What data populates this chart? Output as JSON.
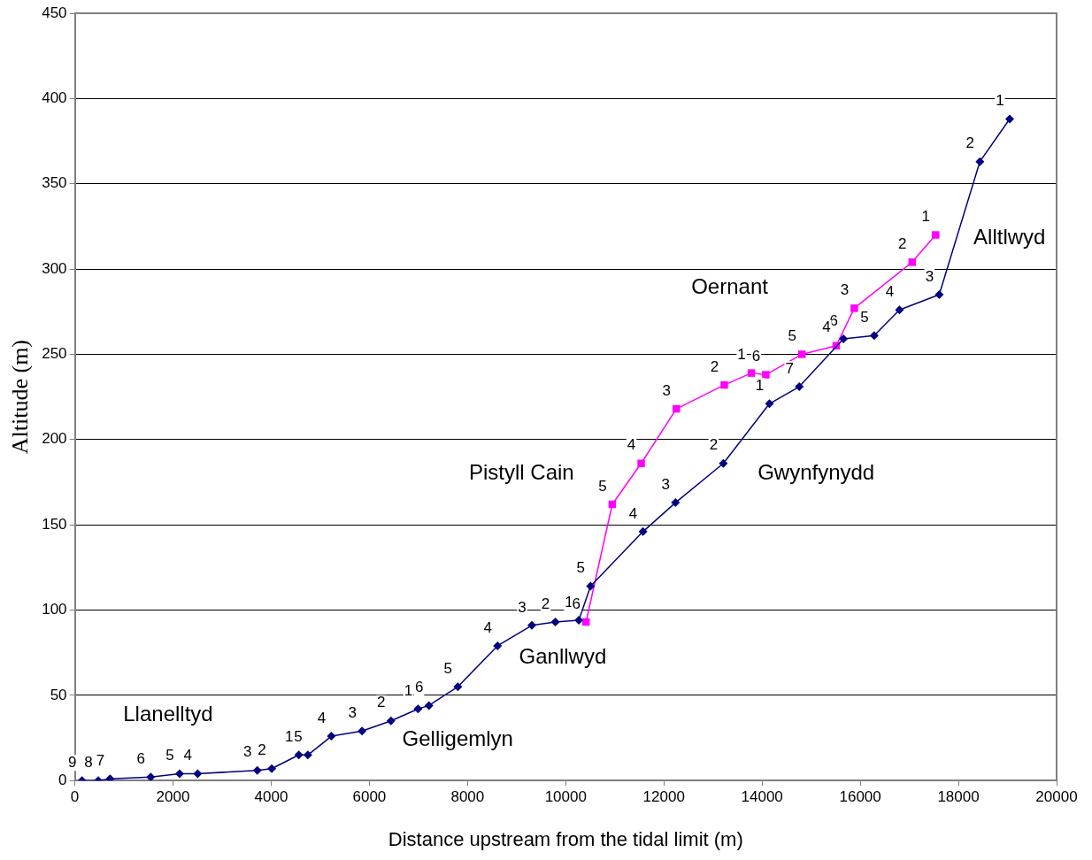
{
  "chart_data": {
    "type": "line",
    "xlabel": "Distance upstream from the tidal limit (m)",
    "ylabel": "Altitude (m)",
    "xlim": [
      0,
      20000
    ],
    "xticks": [
      0,
      2000,
      4000,
      6000,
      8000,
      10000,
      12000,
      14000,
      16000,
      18000,
      20000
    ],
    "ylim": [
      0,
      450
    ],
    "yticks": [
      0,
      50,
      100,
      150,
      200,
      250,
      300,
      350,
      400,
      450
    ],
    "grid": "y",
    "legend": false,
    "series": [
      {
        "color": "#000080",
        "marker": "diamond",
        "x": [
          147,
          478,
          718,
          1546,
          2134,
          2502,
          3717,
          4011,
          4563,
          4747,
          5226,
          5851,
          6440,
          6992,
          7213,
          7802,
          8611,
          9310,
          9789,
          10267,
          10506,
          11574,
          12236,
          13211,
          14150,
          14757,
          15658,
          16284,
          16799,
          17609,
          18437,
          19044
        ],
        "values": [
          0,
          0,
          1,
          2,
          4,
          4,
          6,
          7,
          15,
          15,
          26,
          29,
          35,
          42,
          44,
          55,
          79,
          91,
          93,
          94,
          114,
          146,
          163,
          186,
          221,
          231,
          259,
          261,
          276,
          285,
          363,
          388
        ]
      },
      {
        "color": "#ff00ff",
        "marker": "square",
        "x": [
          10414,
          10948,
          11537,
          12254,
          13230,
          13782,
          14076,
          14812,
          15511,
          15879,
          17057,
          17535
        ],
        "values": [
          93,
          162,
          186,
          218,
          232,
          239,
          238,
          250,
          255,
          277,
          304,
          320
        ]
      }
    ],
    "annotations": [
      "Llanelltyd",
      "Gelligemlyn",
      "Ganllwyd",
      "Pistyll Cain",
      "Gwynfynydd",
      "Oernant",
      "Alltlwyd",
      {
        "text": "9",
        "x": 147,
        "y": 0
      },
      {
        "text": "8",
        "x": 478,
        "y": 0
      },
      {
        "text": "7",
        "x": 718,
        "y": 1
      },
      {
        "text": "6",
        "x": 1546,
        "y": 2
      },
      {
        "text": "5",
        "x": 2134,
        "y": 4
      },
      {
        "text": "4",
        "x": 2502,
        "y": 4
      },
      {
        "text": "3",
        "x": 3717,
        "y": 6
      },
      {
        "text": "2",
        "x": 4011,
        "y": 7
      },
      {
        "text": "1",
        "x": 4563,
        "y": 15
      },
      {
        "text": "5",
        "x": 4747,
        "y": 15
      },
      {
        "text": "4",
        "x": 5226,
        "y": 26
      },
      {
        "text": "3",
        "x": 5851,
        "y": 29
      },
      {
        "text": "2",
        "x": 6440,
        "y": 35
      },
      {
        "text": "1",
        "x": 6992,
        "y": 42
      },
      {
        "text": "6",
        "x": 7213,
        "y": 44
      },
      {
        "text": "5",
        "x": 7802,
        "y": 55
      },
      {
        "text": "4",
        "x": 8611,
        "y": 79
      },
      {
        "text": "3",
        "x": 9310,
        "y": 91
      },
      {
        "text": "2",
        "x": 9789,
        "y": 93
      },
      {
        "text": "1",
        "x": 10267,
        "y": 94
      },
      {
        "text": "5",
        "x": 10506,
        "y": 114
      },
      {
        "text": "4",
        "x": 11574,
        "y": 146
      },
      {
        "text": "3",
        "x": 12236,
        "y": 163
      },
      {
        "text": "2",
        "x": 13211,
        "y": 186
      },
      {
        "text": "1",
        "x": 14150,
        "y": 221
      },
      {
        "text": "7",
        "x": 14757,
        "y": 231
      },
      {
        "text": "6",
        "x": 15658,
        "y": 259
      },
      {
        "text": "5",
        "x": 16284,
        "y": 261
      },
      {
        "text": "4",
        "x": 16799,
        "y": 276
      },
      {
        "text": "3",
        "x": 17609,
        "y": 285
      },
      {
        "text": "2",
        "x": 18437,
        "y": 363
      },
      {
        "text": "1",
        "x": 19044,
        "y": 388
      },
      {
        "text": "6",
        "x": 10414,
        "y": 93
      },
      {
        "text": "5",
        "x": 10948,
        "y": 162
      },
      {
        "text": "4",
        "x": 11537,
        "y": 186
      },
      {
        "text": "3",
        "x": 12254,
        "y": 218
      },
      {
        "text": "2",
        "x": 13230,
        "y": 232
      },
      {
        "text": "1",
        "x": 13782,
        "y": 239
      },
      {
        "text": "6",
        "x": 14076,
        "y": 238
      },
      {
        "text": "5",
        "x": 14812,
        "y": 250
      },
      {
        "text": "4",
        "x": 15511,
        "y": 255
      },
      {
        "text": "3",
        "x": 15879,
        "y": 277
      },
      {
        "text": "2",
        "x": 17057,
        "y": 304
      },
      {
        "text": "1",
        "x": 17535,
        "y": 320
      }
    ]
  }
}
